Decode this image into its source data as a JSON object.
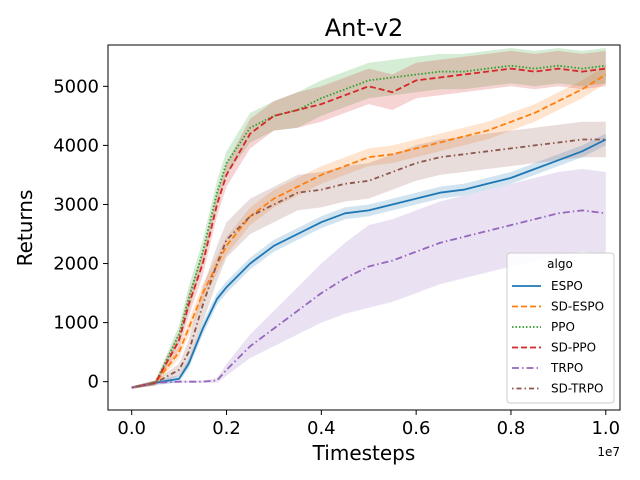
{
  "chart_data": {
    "type": "line",
    "title": "Ant-v2",
    "xlabel": "Timesteps",
    "ylabel": "Returns",
    "x_multiplier_label": "1e7",
    "xlim": [
      -0.05,
      1.03
    ],
    "ylim": [
      -480,
      5700
    ],
    "x_ticks": [
      0.0,
      0.2,
      0.4,
      0.6,
      0.8,
      1.0
    ],
    "x_tick_labels": [
      "0.0",
      "0.2",
      "0.4",
      "0.6",
      "0.8",
      "1.0"
    ],
    "y_ticks": [
      0,
      1000,
      2000,
      3000,
      4000,
      5000
    ],
    "y_tick_labels": [
      "0",
      "1000",
      "2000",
      "3000",
      "4000",
      "5000"
    ],
    "legend": {
      "title": "algo",
      "position": "lower-right"
    },
    "series": [
      {
        "name": "ESPO",
        "color": "#1f77b4",
        "dash": "solid",
        "x": [
          0.0,
          0.05,
          0.1,
          0.12,
          0.15,
          0.18,
          0.2,
          0.25,
          0.3,
          0.35,
          0.4,
          0.45,
          0.5,
          0.55,
          0.6,
          0.65,
          0.7,
          0.75,
          0.8,
          0.85,
          0.9,
          0.95,
          1.0
        ],
        "y": [
          -100,
          -20,
          50,
          300,
          900,
          1400,
          1600,
          2000,
          2300,
          2500,
          2700,
          2850,
          2900,
          3000,
          3100,
          3200,
          3250,
          3350,
          3450,
          3600,
          3750,
          3900,
          4100
        ],
        "band": [
          20,
          40,
          60,
          80,
          100,
          100,
          100,
          100,
          100,
          100,
          100,
          100,
          100,
          100,
          100,
          100,
          100,
          100,
          100,
          100,
          100,
          100,
          100
        ]
      },
      {
        "name": "SD-ESPO",
        "color": "#ff7f0e",
        "dash": "dashed",
        "x": [
          0.0,
          0.05,
          0.1,
          0.15,
          0.2,
          0.25,
          0.3,
          0.35,
          0.4,
          0.45,
          0.5,
          0.55,
          0.6,
          0.65,
          0.7,
          0.75,
          0.8,
          0.85,
          0.9,
          0.95,
          1.0
        ],
        "y": [
          -100,
          -20,
          500,
          1500,
          2300,
          2800,
          3100,
          3300,
          3500,
          3650,
          3800,
          3850,
          3950,
          4050,
          4150,
          4250,
          4400,
          4550,
          4750,
          4950,
          5200
        ],
        "band": [
          20,
          40,
          100,
          150,
          150,
          150,
          150,
          150,
          150,
          150,
          150,
          150,
          150,
          150,
          150,
          150,
          150,
          150,
          150,
          150,
          150
        ]
      },
      {
        "name": "PPO",
        "color": "#2ca02c",
        "dash": "dotted",
        "x": [
          0.0,
          0.05,
          0.1,
          0.12,
          0.15,
          0.18,
          0.2,
          0.25,
          0.3,
          0.35,
          0.4,
          0.45,
          0.5,
          0.55,
          0.6,
          0.65,
          0.7,
          0.75,
          0.8,
          0.85,
          0.9,
          0.95,
          1.0
        ],
        "y": [
          -100,
          -20,
          800,
          1400,
          2200,
          3200,
          3700,
          4300,
          4500,
          4600,
          4800,
          4950,
          5100,
          5150,
          5200,
          5250,
          5250,
          5300,
          5350,
          5300,
          5350,
          5300,
          5350
        ],
        "band": [
          20,
          40,
          150,
          200,
          200,
          200,
          200,
          250,
          250,
          300,
          300,
          300,
          300,
          300,
          300,
          300,
          300,
          300,
          300,
          300,
          300,
          300,
          300
        ]
      },
      {
        "name": "SD-PPO",
        "color": "#d62728",
        "dash": "dashed",
        "x": [
          0.0,
          0.05,
          0.1,
          0.12,
          0.15,
          0.18,
          0.2,
          0.25,
          0.3,
          0.35,
          0.4,
          0.45,
          0.5,
          0.55,
          0.6,
          0.65,
          0.7,
          0.75,
          0.8,
          0.85,
          0.9,
          0.95,
          1.0
        ],
        "y": [
          -100,
          -20,
          700,
          1300,
          2000,
          3000,
          3500,
          4200,
          4500,
          4600,
          4700,
          4850,
          5000,
          4900,
          5100,
          5150,
          5200,
          5250,
          5300,
          5250,
          5300,
          5250,
          5300
        ],
        "band": [
          20,
          40,
          150,
          200,
          200,
          200,
          200,
          250,
          250,
          300,
          300,
          300,
          300,
          300,
          300,
          300,
          300,
          300,
          300,
          300,
          300,
          300,
          300
        ]
      },
      {
        "name": "TRPO",
        "color": "#9467bd",
        "dash": "dashdot",
        "x": [
          0.0,
          0.05,
          0.1,
          0.15,
          0.18,
          0.2,
          0.25,
          0.3,
          0.35,
          0.4,
          0.45,
          0.5,
          0.55,
          0.6,
          0.65,
          0.7,
          0.75,
          0.8,
          0.85,
          0.9,
          0.95,
          1.0
        ],
        "y": [
          -100,
          -20,
          0,
          0,
          20,
          200,
          600,
          900,
          1200,
          1500,
          1750,
          1950,
          2050,
          2200,
          2350,
          2450,
          2550,
          2650,
          2750,
          2850,
          2900,
          2850
        ],
        "band": [
          20,
          20,
          20,
          20,
          40,
          100,
          200,
          300,
          400,
          500,
          600,
          700,
          700,
          700,
          700,
          700,
          700,
          700,
          700,
          700,
          700,
          700
        ]
      },
      {
        "name": "SD-TRPO",
        "color": "#8c564b",
        "dash": "dashdotted",
        "x": [
          0.0,
          0.05,
          0.1,
          0.12,
          0.15,
          0.18,
          0.2,
          0.25,
          0.3,
          0.35,
          0.4,
          0.45,
          0.5,
          0.55,
          0.6,
          0.65,
          0.7,
          0.75,
          0.8,
          0.85,
          0.9,
          0.95,
          1.0
        ],
        "y": [
          -100,
          -20,
          200,
          500,
          1300,
          2000,
          2400,
          2800,
          3000,
          3200,
          3250,
          3350,
          3400,
          3550,
          3700,
          3800,
          3850,
          3900,
          3950,
          4000,
          4050,
          4100,
          4100
        ],
        "band": [
          20,
          40,
          100,
          200,
          300,
          300,
          300,
          300,
          300,
          300,
          300,
          300,
          300,
          300,
          300,
          300,
          300,
          300,
          300,
          300,
          300,
          300,
          300
        ]
      }
    ]
  }
}
